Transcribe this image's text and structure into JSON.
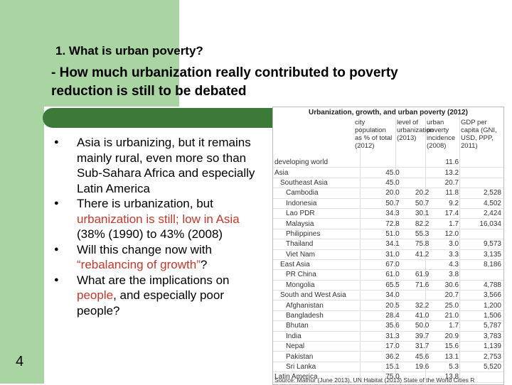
{
  "slide": {
    "title": "1. What is urban poverty?",
    "subtitle": "- How much urbanization really contributed to poverty reduction is still to be debated",
    "page_number": "4"
  },
  "bullets": [
    {
      "text": "Asia is urbanizing, but it remains mainly rural, even more so than Sub-Sahara Africa and especially Latin America"
    },
    {
      "text_a": "There is urbanization, but ",
      "text_red1": "urbanization is still; low in Asia",
      "text_b": " (38% (1990) to 43% (2008)"
    },
    {
      "text_a": "Will this change now with ",
      "text_red": "“rebalancing of growth”",
      "text_b": "?"
    },
    {
      "text_a": "What are the implications on ",
      "text_red": "people",
      "text_b": ", and especially poor people?"
    }
  ],
  "table": {
    "title": "Urbanization, growth, and urban poverty (2012)",
    "columns": [
      "city population as % of total (2012)",
      "level of urbanization (2013)",
      "urban poverty incidence (2008)",
      "GDP per capita (GNI, USD, PPP, 2011)"
    ],
    "rows": [
      {
        "name": "developing world",
        "v": [
          "",
          "",
          "11.6",
          ""
        ]
      },
      {
        "name": "Asia",
        "v": [
          "45.0",
          "",
          "13.2",
          ""
        ]
      },
      {
        "name": "Southeast Asia",
        "v": [
          "45.0",
          "",
          "20.7",
          ""
        ]
      },
      {
        "name": "Cambodia",
        "v": [
          "20.0",
          "20.2",
          "11.8",
          "2,528"
        ]
      },
      {
        "name": "Indonesia",
        "v": [
          "50.7",
          "50.7",
          "9.2",
          "4,502"
        ]
      },
      {
        "name": "Lao PDR",
        "v": [
          "34.3",
          "30.1",
          "17.4",
          "2,424"
        ]
      },
      {
        "name": "Malaysia",
        "v": [
          "72.8",
          "82.2",
          "1.7",
          "16,034"
        ]
      },
      {
        "name": "Philippines",
        "v": [
          "51.0",
          "55.3",
          "12.0",
          ""
        ]
      },
      {
        "name": "Thailand",
        "v": [
          "34.1",
          "75.8",
          "3.0",
          "9,573"
        ]
      },
      {
        "name": "Viet Nam",
        "v": [
          "31.0",
          "41.2",
          "3.3",
          "3,135"
        ]
      },
      {
        "name": "East Asia",
        "v": [
          "67.0",
          "",
          "4.3",
          "8,186"
        ]
      },
      {
        "name": "PR China",
        "v": [
          "61.0",
          "61.9",
          "3.8",
          ""
        ]
      },
      {
        "name": "Mongolia",
        "v": [
          "65.5",
          "71.6",
          "30.6",
          "4,788"
        ]
      },
      {
        "name": "South and West Asia",
        "v": [
          "34.0",
          "",
          "20.7",
          "3,566"
        ]
      },
      {
        "name": "Afghanistan",
        "v": [
          "20.5",
          "32.2",
          "25.0",
          "1,200"
        ]
      },
      {
        "name": "Bangladesh",
        "v": [
          "28.4",
          "41.0",
          "21.0",
          "1,506"
        ]
      },
      {
        "name": "Bhutan",
        "v": [
          "35.6",
          "50.0",
          "1.7",
          "5,787"
        ]
      },
      {
        "name": "India",
        "v": [
          "31.3",
          "39.7",
          "20.9",
          "3,783"
        ]
      },
      {
        "name": "Nepal",
        "v": [
          "17.0",
          "31.7",
          "15.6",
          "1,139"
        ]
      },
      {
        "name": "Pakistan",
        "v": [
          "36.2",
          "45.6",
          "13.1",
          "2,753"
        ]
      },
      {
        "name": "Sri Lanka",
        "v": [
          "15.1",
          "19.6",
          "5.3",
          "5,520"
        ]
      },
      {
        "name": "Latin America",
        "v": [
          "75.0",
          "",
          "13.8",
          ""
        ]
      }
    ],
    "source": "Source: Mathur (June 2013), UN Habitat (2013) State of the World Cities R"
  },
  "colors": {
    "accent_green": "#a8d5a2",
    "rule_green": "#3d7a3a",
    "highlight_red": "#c0392b"
  }
}
